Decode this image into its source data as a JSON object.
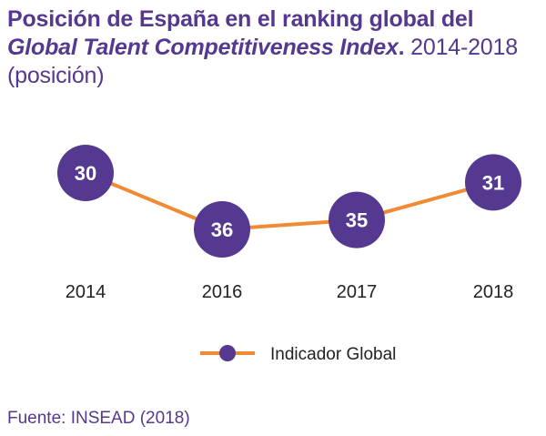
{
  "title": {
    "part1": "Posición de España en el ranking global del ",
    "part2_italic": "Global Talent Competitiveness Index",
    "part3": ".",
    "part4": " 2014-2018",
    "part5": "(posición)"
  },
  "source": "Fuente: INSEAD (2018)",
  "colors": {
    "title": "#55388f",
    "line": "#f08a35",
    "marker": "#55388f",
    "marker_text": "#ffffff",
    "axis_text": "#222222",
    "legend_text": "#222222"
  },
  "chart_data": {
    "type": "line",
    "title": "Posición de España en el ranking global del Global Talent Competitiveness Index. 2014-2018 (posición)",
    "x": [
      "2014",
      "2016",
      "2017",
      "2018"
    ],
    "series": [
      {
        "name": "Indicador Global",
        "values": [
          30,
          36,
          35,
          31
        ]
      }
    ],
    "xlabel": "",
    "ylabel": "",
    "ylim": [
      29,
      37
    ],
    "y_inverted": true,
    "grid": false,
    "legend": "bottom"
  }
}
